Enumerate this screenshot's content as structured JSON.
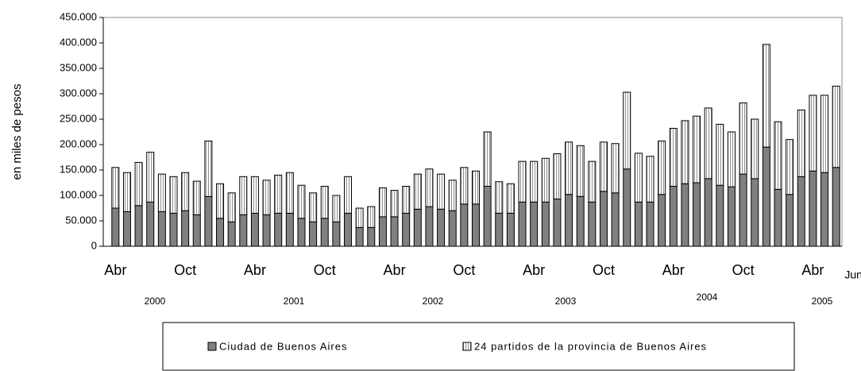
{
  "chart_data": {
    "type": "stacked-bar",
    "y_label": "en miles de pesos",
    "categories": [
      "Abr",
      null,
      null,
      null,
      null,
      null,
      "Oct",
      null,
      null,
      null,
      null,
      null,
      "Abr",
      null,
      null,
      null,
      null,
      null,
      "Oct",
      null,
      null,
      null,
      null,
      null,
      "Abr",
      null,
      null,
      null,
      null,
      null,
      "Oct",
      null,
      null,
      null,
      null,
      null,
      "Abr",
      null,
      null,
      null,
      null,
      null,
      "Oct",
      null,
      null,
      null,
      null,
      null,
      "Abr",
      null,
      null,
      null,
      null,
      null,
      "Oct",
      null,
      null,
      null,
      null,
      null,
      "Abr",
      null,
      "Jun"
    ],
    "year_labels": [
      "2000",
      "2001",
      "2002",
      "2003",
      "2004",
      "2005"
    ],
    "series": [
      {
        "name": "Ciudad de Buenos Aires",
        "color": "#808080",
        "values": [
          75000,
          68000,
          80000,
          87000,
          68000,
          65000,
          70000,
          62000,
          98000,
          55000,
          48000,
          62000,
          65000,
          62000,
          65000,
          65000,
          55000,
          48000,
          55000,
          48000,
          65000,
          37000,
          37000,
          58000,
          58000,
          65000,
          73000,
          78000,
          73000,
          70000,
          83000,
          83000,
          118000,
          65000,
          65000,
          87000,
          87000,
          87000,
          93000,
          102000,
          98000,
          87000,
          108000,
          105000,
          152000,
          87000,
          87000,
          102000,
          118000,
          123000,
          125000,
          133000,
          120000,
          117000,
          142000,
          133000,
          195000,
          112000,
          102000,
          137000,
          148000,
          145000,
          155000
        ]
      },
      {
        "name": "24 partidos de la provincia de Buenos Aires",
        "color": "#ffffff",
        "values": [
          80000,
          77000,
          85000,
          98000,
          74000,
          72000,
          75000,
          66000,
          109000,
          68000,
          57000,
          75000,
          72000,
          68000,
          75000,
          80000,
          65000,
          57000,
          63000,
          52000,
          72000,
          38000,
          41000,
          57000,
          52000,
          53000,
          69000,
          74000,
          69000,
          60000,
          72000,
          65000,
          107000,
          62000,
          58000,
          80000,
          80000,
          86000,
          89000,
          103000,
          100000,
          80000,
          97000,
          97000,
          151000,
          96000,
          90000,
          105000,
          114000,
          124000,
          131000,
          139000,
          120000,
          108000,
          140000,
          117000,
          202000,
          133000,
          108000,
          131000,
          149000,
          152000,
          160000
        ]
      }
    ],
    "ylim": [
      0,
      450000
    ],
    "yticks": [
      0,
      {
        "value": 50000,
        "label": "50.000"
      },
      {
        "value": 100000,
        "label": "100.000"
      },
      {
        "value": 150000,
        "label": "150.000"
      },
      {
        "value": 200000,
        "label": "200.000"
      },
      {
        "value": 250000,
        "label": "250.000"
      },
      {
        "value": 300000,
        "label": "300.000"
      },
      {
        "value": 350000,
        "label": "350.000"
      },
      {
        "value": 400000,
        "label": "400.000"
      },
      {
        "value": 450000,
        "label": "450.000"
      }
    ]
  }
}
